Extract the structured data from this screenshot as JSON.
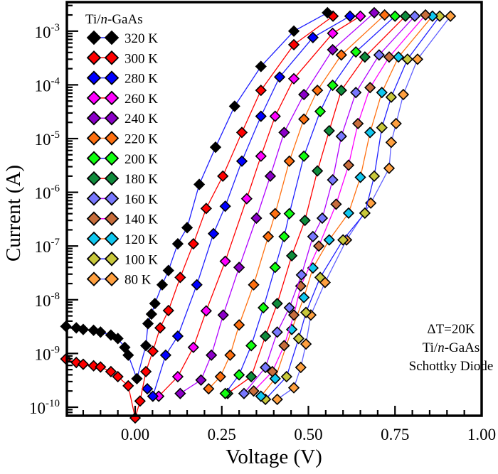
{
  "chart_data": {
    "type": "scatter",
    "xlabel": "Voltage (V)",
    "ylabel": "Current (A)",
    "xlim": [
      -0.2,
      1.0
    ],
    "ylim": [
      6.9e-11,
      0.0035
    ],
    "yscale": "log",
    "grid": false,
    "legend_placement": "top-left",
    "legend_title": "Ti/n-GaAs",
    "xticks": [
      0.0,
      0.25,
      0.5,
      0.75,
      1.0
    ],
    "xtick_labels": [
      "0.00",
      "0.25",
      "0.50",
      "0.75",
      "1.00"
    ],
    "yticks": [
      1e-10,
      1e-09,
      1e-08,
      1e-07,
      1e-06,
      1e-05,
      0.0001,
      0.001
    ],
    "ytick_labels": [
      {
        "base": "10",
        "exp": "-10"
      },
      {
        "base": "10",
        "exp": "-9"
      },
      {
        "base": "10",
        "exp": "-8"
      },
      {
        "base": "10",
        "exp": "-7"
      },
      {
        "base": "10",
        "exp": "-6"
      },
      {
        "base": "10",
        "exp": "-5"
      },
      {
        "base": "10",
        "exp": "-4"
      },
      {
        "base": "10",
        "exp": "-3"
      }
    ],
    "annotation": {
      "line1": "ΔT=20K",
      "line2_pre": "Ti/",
      "line2_it": "n",
      "line2_post": "-GaAs",
      "line3": "Schottky Diode"
    },
    "series": [
      {
        "name": "320 K",
        "color": "#000000",
        "line": "#2020ff",
        "points": [
          [
            -0.2,
            3.2e-09
          ],
          [
            -0.17,
            3e-09
          ],
          [
            -0.15,
            2.8e-09
          ],
          [
            -0.12,
            2.7e-09
          ],
          [
            -0.1,
            2.5e-09
          ],
          [
            -0.07,
            2.2e-09
          ],
          [
            -0.05,
            1.9e-09
          ],
          [
            -0.03,
            1.3e-09
          ],
          [
            -0.02,
            9.3e-10
          ],
          [
            0.005,
            3.4e-10
          ],
          [
            0.031,
            1.4e-09
          ],
          [
            0.037,
            3.6e-09
          ],
          [
            0.047,
            5.4e-09
          ],
          [
            0.057,
            8.5e-09
          ],
          [
            0.078,
            1.9e-08
          ],
          [
            0.096,
            3.5e-08
          ],
          [
            0.123,
            1.1e-07
          ],
          [
            0.15,
            2.2e-07
          ],
          [
            0.185,
            1.4e-06
          ],
          [
            0.232,
            6.9e-06
          ],
          [
            0.287,
            4e-05
          ],
          [
            0.363,
            0.00022
          ],
          [
            0.458,
            0.001
          ],
          [
            0.555,
            0.0022
          ]
        ]
      },
      {
        "name": "300 K",
        "color": "#ff0000",
        "line": "#ff0000",
        "points": [
          [
            -0.2,
            7.9e-10
          ],
          [
            -0.17,
            6.8e-10
          ],
          [
            -0.15,
            6.3e-10
          ],
          [
            -0.12,
            5.9e-10
          ],
          [
            -0.1,
            5.6e-10
          ],
          [
            -0.07,
            4.6e-10
          ],
          [
            -0.05,
            3.7e-10
          ],
          [
            -0.02,
            2.5e-10
          ],
          [
            0.0,
            6.3e-11
          ],
          [
            0.014,
            1.3e-10
          ],
          [
            0.031,
            4.6e-10
          ],
          [
            0.051,
            1.1e-09
          ],
          [
            0.072,
            3e-09
          ],
          [
            0.096,
            6.3e-09
          ],
          [
            0.13,
            2.6e-08
          ],
          [
            0.168,
            1.1e-07
          ],
          [
            0.205,
            5e-07
          ],
          [
            0.253,
            2e-06
          ],
          [
            0.308,
            1.3e-05
          ],
          [
            0.363,
            7.9e-05
          ],
          [
            0.458,
            0.00056
          ],
          [
            0.571,
            0.0019
          ]
        ]
      },
      {
        "name": "280 K",
        "color": "#0000ff",
        "line": "#2020ff",
        "points": [
          [
            0.035,
            2.2e-10
          ],
          [
            0.051,
            1.6e-10
          ],
          [
            0.088,
            9.3e-10
          ],
          [
            0.123,
            2.1e-09
          ],
          [
            0.178,
            1.9e-08
          ],
          [
            0.226,
            1.7e-07
          ],
          [
            0.26,
            5.5e-07
          ],
          [
            0.308,
            3.8e-06
          ],
          [
            0.363,
            2.6e-05
          ],
          [
            0.417,
            0.00014
          ],
          [
            0.513,
            0.00076
          ],
          [
            0.62,
            0.0019
          ]
        ]
      },
      {
        "name": "260 K",
        "color": "#ff00ff",
        "line": "#ff0000",
        "points": [
          [
            0.068,
            1.6e-10
          ],
          [
            0.123,
            3.7e-10
          ],
          [
            0.168,
            1.3e-09
          ],
          [
            0.205,
            6.2e-09
          ],
          [
            0.26,
            5.2e-08
          ],
          [
            0.322,
            7.6e-07
          ],
          [
            0.363,
            4.7e-06
          ],
          [
            0.404,
            2.6e-05
          ],
          [
            0.458,
            0.00013
          ],
          [
            0.57,
            0.00091
          ],
          [
            0.65,
            0.0019
          ]
        ]
      },
      {
        "name": "240 K",
        "color": "#8b00c8",
        "line": "#b000ff",
        "points": [
          [
            0.13,
            1.8e-10
          ],
          [
            0.19,
            3.2e-10
          ],
          [
            0.22,
            9.3e-10
          ],
          [
            0.254,
            5.2e-09
          ],
          [
            0.3,
            4e-08
          ],
          [
            0.35,
            3.3e-07
          ],
          [
            0.39,
            2e-06
          ],
          [
            0.43,
            1.3e-05
          ],
          [
            0.487,
            6.6e-05
          ],
          [
            0.57,
            0.00045
          ],
          [
            0.69,
            0.0022
          ]
        ]
      },
      {
        "name": "220 K",
        "color": "#ff7010",
        "line": "#ff7010",
        "points": [
          [
            0.212,
            2.2e-10
          ],
          [
            0.246,
            3.7e-10
          ],
          [
            0.274,
            9.3e-10
          ],
          [
            0.3,
            3.4e-09
          ],
          [
            0.342,
            1.9e-08
          ],
          [
            0.384,
            1.5e-07
          ],
          [
            0.404,
            4e-07
          ],
          [
            0.445,
            3.8e-06
          ],
          [
            0.487,
            2.3e-05
          ],
          [
            0.526,
            7.9e-05
          ],
          [
            0.595,
            0.00036
          ],
          [
            0.72,
            0.002
          ]
        ]
      },
      {
        "name": "200 K",
        "color": "#10ff10",
        "line": "#2020ff",
        "points": [
          [
            0.26,
            1.8e-10
          ],
          [
            0.3,
            4e-10
          ],
          [
            0.335,
            1.4e-09
          ],
          [
            0.37,
            7.1e-09
          ],
          [
            0.404,
            4e-08
          ],
          [
            0.43,
            1.5e-07
          ],
          [
            0.445,
            4e-07
          ],
          [
            0.487,
            4.7e-06
          ],
          [
            0.534,
            3.2e-05
          ],
          [
            0.57,
            9.8e-05
          ],
          [
            0.637,
            0.00041
          ],
          [
            0.75,
            0.0019
          ]
        ]
      },
      {
        "name": "180 K",
        "color": "#108c3c",
        "line": "#ff0000",
        "points": [
          [
            0.267,
            1.8e-10
          ],
          [
            0.335,
            3.7e-10
          ],
          [
            0.376,
            2.1e-09
          ],
          [
            0.41,
            8.5e-09
          ],
          [
            0.452,
            6.6e-08
          ],
          [
            0.49,
            3e-07
          ],
          [
            0.526,
            2.5e-06
          ],
          [
            0.56,
            1.4e-05
          ],
          [
            0.595,
            7.9e-05
          ],
          [
            0.663,
            0.00033
          ],
          [
            0.78,
            0.0019
          ]
        ]
      },
      {
        "name": "160 K",
        "color": "#7878ff",
        "line": "#b000ff",
        "points": [
          [
            0.314,
            1.8e-10
          ],
          [
            0.376,
            5.5e-10
          ],
          [
            0.41,
            2.5e-09
          ],
          [
            0.445,
            7.1e-09
          ],
          [
            0.48,
            2.9e-08
          ],
          [
            0.513,
            1.5e-07
          ],
          [
            0.54,
            3.3e-07
          ],
          [
            0.57,
            1.7e-06
          ],
          [
            0.595,
            1.1e-05
          ],
          [
            0.637,
            7.2e-05
          ],
          [
            0.704,
            0.00036
          ],
          [
            0.807,
            0.0019
          ]
        ]
      },
      {
        "name": "140 K",
        "color": "#c86e3c",
        "line": "#ff00ff",
        "points": [
          [
            0.342,
            2e-10
          ],
          [
            0.396,
            4.6e-10
          ],
          [
            0.43,
            1.4e-09
          ],
          [
            0.458,
            5.2e-09
          ],
          [
            0.478,
            1.8e-08
          ],
          [
            0.53,
            1e-07
          ],
          [
            0.58,
            6e-07
          ],
          [
            0.616,
            3.2e-06
          ],
          [
            0.643,
            1.9e-05
          ],
          [
            0.678,
            8.9e-05
          ],
          [
            0.733,
            0.00033
          ],
          [
            0.838,
            0.002
          ]
        ]
      },
      {
        "name": "120 K",
        "color": "#10c8f0",
        "line": "#ff7010",
        "points": [
          [
            0.363,
            1.6e-10
          ],
          [
            0.404,
            3.4e-10
          ],
          [
            0.452,
            2.8e-09
          ],
          [
            0.487,
            1.1e-08
          ],
          [
            0.513,
            3.9e-08
          ],
          [
            0.56,
            1.3e-07
          ],
          [
            0.616,
            4.1e-07
          ],
          [
            0.65,
            1.9e-06
          ],
          [
            0.678,
            1.3e-05
          ],
          [
            0.712,
            7.2e-05
          ],
          [
            0.76,
            0.00033
          ],
          [
            0.858,
            0.0019
          ]
        ]
      },
      {
        "name": "100 K",
        "color": "#c8c83c",
        "line": "#2020ff",
        "points": [
          [
            0.376,
            1.4e-10
          ],
          [
            0.437,
            3.7e-10
          ],
          [
            0.472,
            1.9e-09
          ],
          [
            0.493,
            5.8e-09
          ],
          [
            0.534,
            2.6e-08
          ],
          [
            0.6,
            1.3e-07
          ],
          [
            0.663,
            4.1e-07
          ],
          [
            0.69,
            2e-06
          ],
          [
            0.712,
            1.6e-05
          ],
          [
            0.739,
            5.9e-05
          ],
          [
            0.786,
            0.0003
          ],
          [
            0.879,
            0.0019
          ]
        ]
      },
      {
        "name": "80 K",
        "color": "#ffa040",
        "line": "#6060ff",
        "points": [
          [
            0.41,
            1.4e-10
          ],
          [
            0.458,
            2.3e-10
          ],
          [
            0.478,
            5.5e-10
          ],
          [
            0.493,
            1.5e-09
          ],
          [
            0.507,
            5.2e-09
          ],
          [
            0.548,
            2.1e-08
          ],
          [
            0.61,
            1.3e-07
          ],
          [
            0.68,
            6.3e-07
          ],
          [
            0.733,
            2.8e-06
          ],
          [
            0.739,
            8.5e-06
          ],
          [
            0.753,
            1.9e-05
          ],
          [
            0.774,
            6.6e-05
          ],
          [
            0.815,
            0.0003
          ],
          [
            0.91,
            0.0019
          ]
        ]
      }
    ]
  }
}
